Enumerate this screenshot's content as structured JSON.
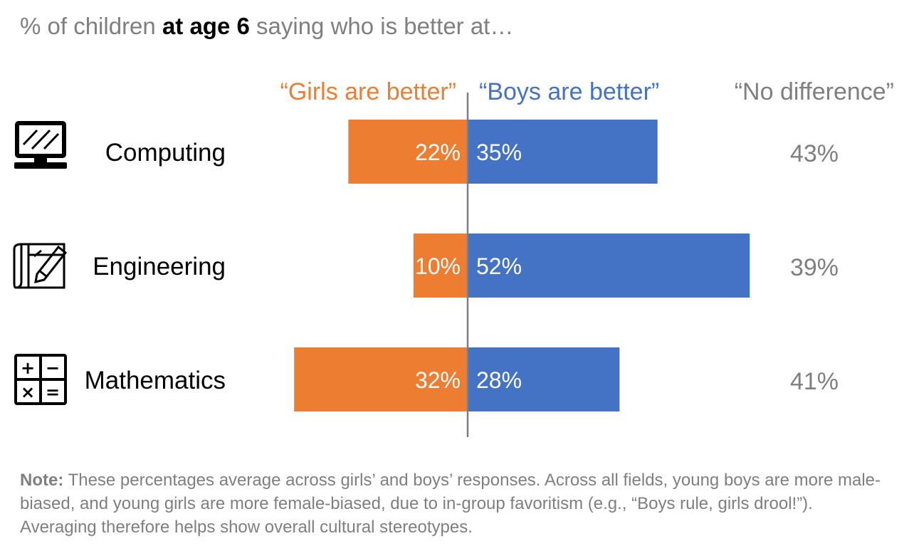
{
  "title": {
    "pre": "% of children ",
    "bold": "at age 6",
    "post": " saying who is better at…"
  },
  "colors": {
    "girls": "#ED7D31",
    "boys": "#4472C4",
    "neutral": "#7F7F7F",
    "axis": "#7F7F7F",
    "label": "#000000"
  },
  "chart_data": {
    "type": "bar",
    "orientation": "horizontal-diverging",
    "categories": [
      "Computing",
      "Engineering",
      "Mathematics"
    ],
    "icons": [
      "computer-monitor-icon",
      "blueprint-pencil-icon",
      "calculator-symbols-icon"
    ],
    "series": [
      {
        "name": "“Girls are better”",
        "values": [
          22,
          10,
          32
        ],
        "labels": [
          "22%",
          "10%",
          "32%"
        ]
      },
      {
        "name": "“Boys are better”",
        "values": [
          35,
          52,
          28
        ],
        "labels": [
          "35%",
          "52%",
          "28%"
        ]
      }
    ],
    "no_difference": {
      "name": "“No difference”",
      "values": [
        43,
        39,
        41
      ],
      "labels": [
        "43%",
        "39%",
        "41%"
      ]
    },
    "xlim": [
      -32,
      52
    ]
  },
  "note": {
    "label": "Note:",
    "text": " These percentages average across girls’ and boys’ responses. Across all fields, young boys are more male-biased, and young girls are more female-biased, due to in-group favoritism (e.g., “Boys rule, girls drool!”). Averaging therefore helps show overall cultural stereotypes."
  }
}
